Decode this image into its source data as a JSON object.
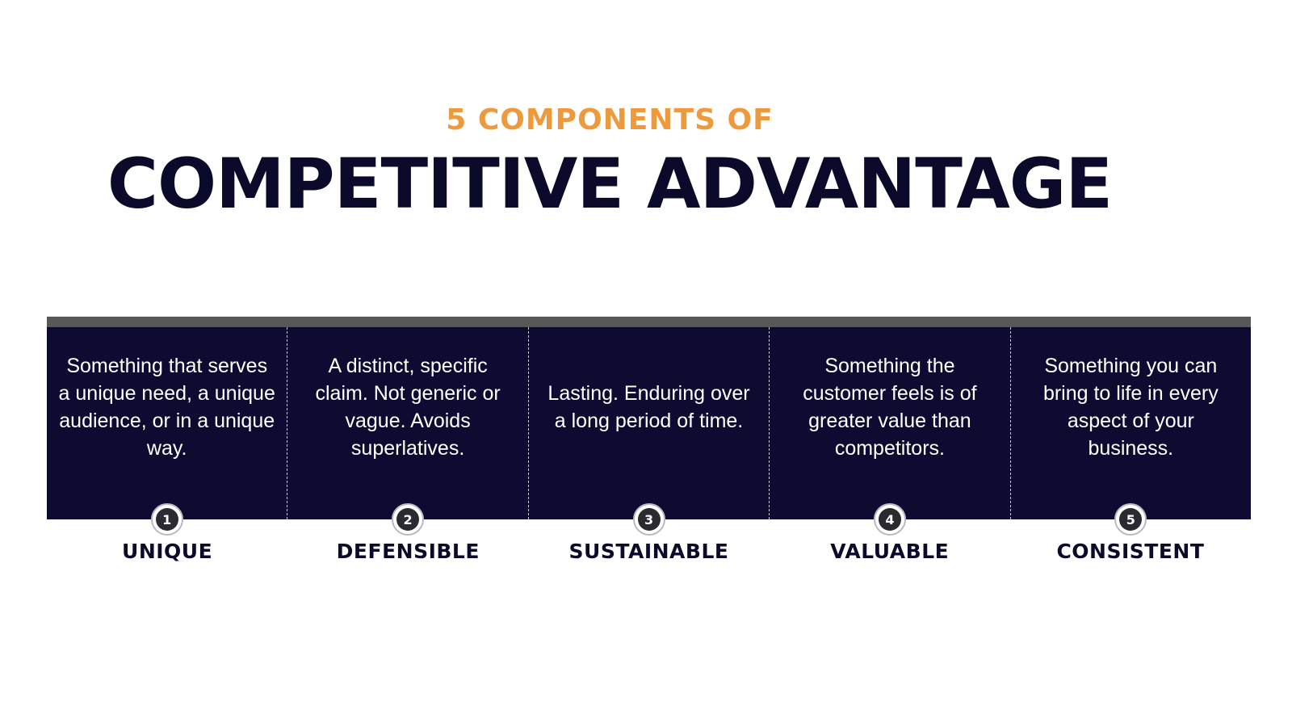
{
  "header": {
    "subtitle": "5 COMPONENTS OF",
    "title": "COMPETITIVE ADVANTAGE"
  },
  "colors": {
    "accent": "#ee9a3c",
    "navy": "#0e0b33",
    "bar": "#58585a"
  },
  "components": [
    {
      "number": "1",
      "label": "UNIQUE",
      "description": "Something that serves a unique need, a unique audience, or in a unique way."
    },
    {
      "number": "2",
      "label": "DEFENSIBLE",
      "description": "A distinct, specific claim. Not generic or vague. Avoids superlatives."
    },
    {
      "number": "3",
      "label": "SUSTAINABLE",
      "description": "Lasting. Enduring over a long period of time."
    },
    {
      "number": "4",
      "label": "VALUABLE",
      "description": "Something the customer feels is of greater value than competitors."
    },
    {
      "number": "5",
      "label": "CONSISTENT",
      "description": "Something you can bring to life in every aspect of your business."
    }
  ]
}
